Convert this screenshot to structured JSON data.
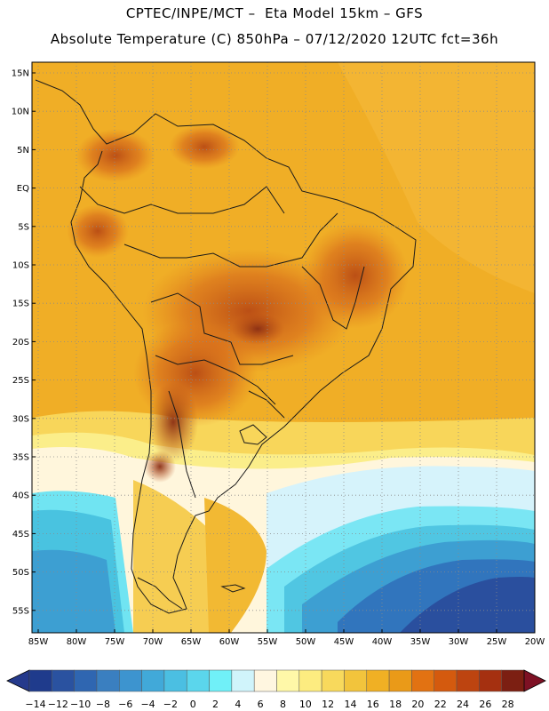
{
  "header": {
    "line1": "CPTEC/INPE/MCT –  Eta Model 15km – GFS",
    "line2": "Absolute Temperature (C) 850hPa – 07/12/2020 12UTC fct=36h"
  },
  "map": {
    "lat_labels": [
      "15N",
      "10N",
      "5N",
      "EQ",
      "5S",
      "10S",
      "15S",
      "20S",
      "25S",
      "30S",
      "35S",
      "40S",
      "45S",
      "50S",
      "55S"
    ],
    "lon_labels": [
      "85W",
      "80W",
      "75W",
      "70W",
      "65W",
      "60W",
      "55W",
      "50W",
      "45W",
      "40W",
      "35W",
      "30W",
      "25W",
      "20W"
    ],
    "lon_range": [
      -86,
      -20
    ],
    "lat_range": [
      16,
      -58
    ]
  },
  "colorbar": {
    "labels": [
      "-14",
      "-12",
      "-10",
      "-8",
      "-6",
      "-4",
      "-2",
      "0",
      "2",
      "4",
      "6",
      "8",
      "10",
      "12",
      "14",
      "16",
      "18",
      "20",
      "22",
      "24",
      "26",
      "28"
    ],
    "colors": [
      "#1f3b8c",
      "#2a52a0",
      "#2f66b1",
      "#3a7fc0",
      "#3d94cf",
      "#41a9d9",
      "#4bbfe2",
      "#5bd6ec",
      "#70f0f8",
      "#d0f4fb",
      "#fff6e0",
      "#fff8a8",
      "#fdec80",
      "#f8d95c",
      "#f2c43c",
      "#f0b024",
      "#ea9a18",
      "#e27212",
      "#d45a0e",
      "#bd4410",
      "#a53010",
      "#7c1f12"
    ],
    "under_color": "#253a8c",
    "over_color": "#7e1124"
  }
}
